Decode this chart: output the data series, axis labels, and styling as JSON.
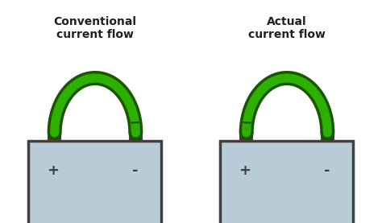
{
  "bg_color": "#ffffff",
  "battery_fill": "#b8ccd8",
  "battery_edge": "#404040",
  "terminal_red": "#dd0000",
  "terminal_dark": "#303030",
  "arrow_color": "#2db000",
  "arrow_edge": "#1a5500",
  "left_title": "Conventional\ncurrent flow",
  "right_title": "Actual\ncurrent flow",
  "plus_label": "+",
  "minus_label": "-",
  "title_fontsize": 10,
  "label_fontsize": 13
}
